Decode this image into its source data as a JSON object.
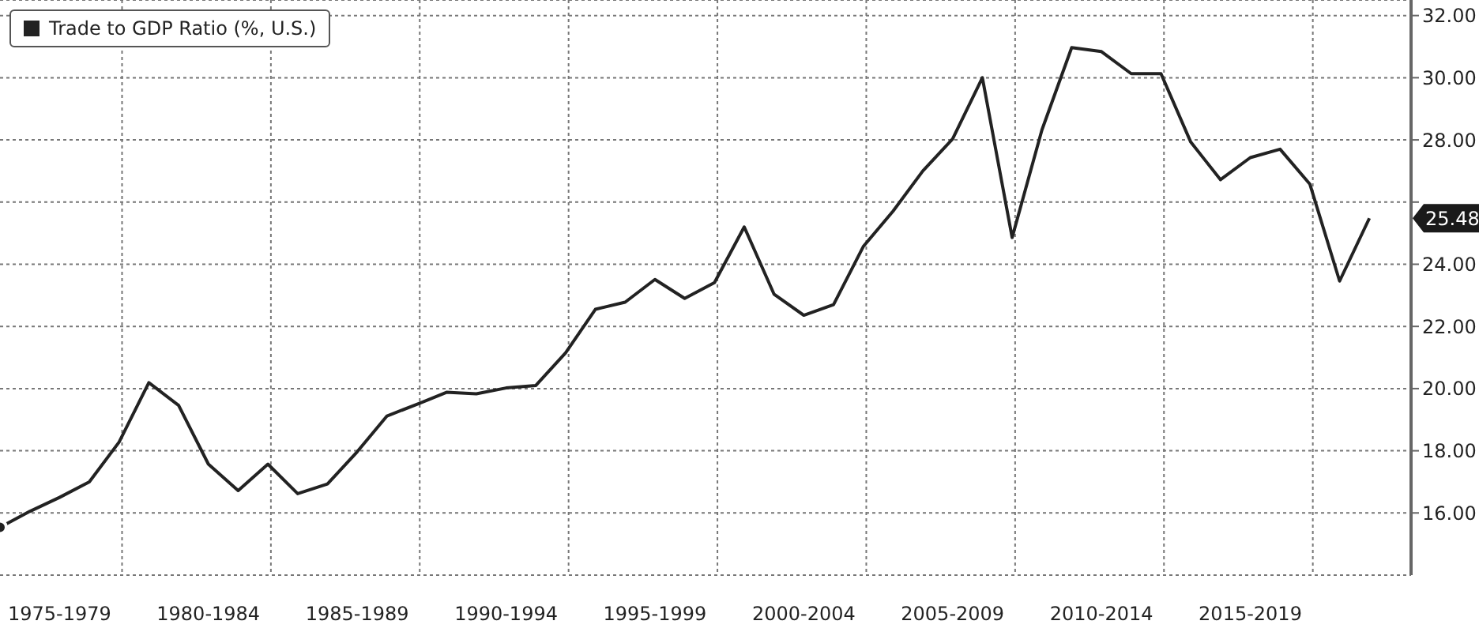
{
  "chart_data": {
    "type": "line",
    "legend": "top left",
    "grid": true,
    "line_style": "solid",
    "marker": "none",
    "categories": [
      null,
      null,
      "1975-1979",
      null,
      null,
      null,
      null,
      "1980-1984",
      null,
      null,
      null,
      null,
      "1985-1989",
      null,
      null,
      null,
      null,
      "1990-1994",
      null,
      null,
      null,
      null,
      "1995-1999",
      null,
      null,
      null,
      null,
      "2000-2004",
      null,
      null,
      null,
      null,
      "2005-2009",
      null,
      null,
      null,
      null,
      "2010-2014",
      null,
      null,
      null,
      null,
      "2015-2019",
      null,
      null,
      null,
      null
    ],
    "ylim": [
      14,
      32.5
    ],
    "yticks": [
      {
        "value": 16,
        "label": "16.00"
      },
      {
        "value": 18,
        "label": "18.00"
      },
      {
        "value": 20,
        "label": "20.00"
      },
      {
        "value": 22,
        "label": "22.00"
      },
      {
        "value": 24,
        "label": "24.00"
      },
      {
        "value": 26,
        "label": null
      },
      {
        "value": 28,
        "label": "28.00"
      },
      {
        "value": 30,
        "label": "30.00"
      },
      {
        "value": 32,
        "label": "32.00"
      }
    ],
    "series": [
      {
        "name": "Trade to GDP Ratio (%, U.S.)",
        "color": "#222222",
        "values": [
          15.54,
          16.05,
          16.5,
          17.0,
          18.28,
          20.19,
          19.46,
          17.57,
          16.72,
          17.57,
          16.62,
          16.93,
          17.97,
          19.12,
          19.49,
          19.88,
          19.83,
          20.02,
          20.1,
          21.15,
          22.55,
          22.78,
          23.51,
          22.9,
          23.41,
          25.2,
          23.04,
          22.36,
          22.7,
          24.57,
          25.71,
          27.0,
          28.03,
          30.0,
          24.86,
          28.32,
          30.97,
          30.84,
          30.13,
          30.13,
          27.93,
          26.72,
          27.43,
          27.7,
          26.58,
          23.46,
          25.48
        ]
      }
    ],
    "annotations": [
      "25.48"
    ]
  }
}
